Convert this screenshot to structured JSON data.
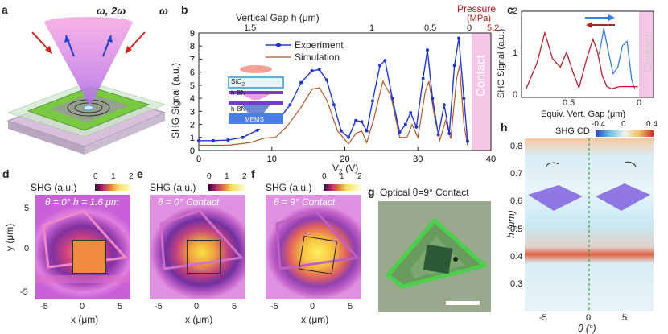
{
  "labels": {
    "a": "a",
    "b": "b",
    "c": "c",
    "d": "d",
    "e": "e",
    "f": "f",
    "g": "g",
    "h": "h"
  },
  "panel_a": {
    "beam_label_left": "ω, 2ω",
    "beam_label_right": "ω",
    "colors": {
      "beam": "#e070d0",
      "arrow_red": "#d02020",
      "arrow_blue": "#2040d0",
      "chip": "#7ac943"
    }
  },
  "panel_b": {
    "top_axis_title": "Vertical Gap h (μm)",
    "top_ticks": [
      "1.5",
      "1",
      "0.5",
      "0"
    ],
    "pressure_title": "Pressure",
    "pressure_unit": "(MPa)",
    "pressure_value": "5.2",
    "ylabel": "SHG Signal (a.u.)",
    "xlabel": "V",
    "xlabel_sub": "Z",
    "xlabel_unit": " (V)",
    "contact_label": "Contact",
    "legend": [
      "Experiment",
      "Simulation"
    ],
    "inset": {
      "sio2": "SiO",
      "sio2_sub": "2",
      "hbn_top": "h-BN",
      "hbn_bottom": "h-BN",
      "mems": "MEMS"
    },
    "colors": {
      "experiment": "#2338c8",
      "simulation": "#b5562a",
      "contact": "#f5c6e6",
      "pressure": "#b01818"
    }
  },
  "panel_c": {
    "ylabel": "SHG Signal (a.u.)",
    "xlabel": "Equiv. Vert. Gap (μm)",
    "contact_label": "Contact",
    "x_ticks": [
      "0.5",
      "0"
    ],
    "y_ticks": [
      "0",
      "1",
      "2"
    ]
  },
  "panel_d": {
    "title": "SHG (a.u.)",
    "cbar_ticks": [
      "0",
      "1",
      "2"
    ],
    "annotation": "θ = 0°   h = 1.6 μm",
    "xlabel": "x (μm)",
    "ylabel": "y (μm)",
    "x_ticks": [
      "-5",
      "0",
      "5"
    ],
    "y_ticks": [
      "5",
      "0",
      "-5"
    ]
  },
  "panel_e": {
    "title": "SHG (a.u.)",
    "cbar_ticks": [
      "0",
      "1",
      "2"
    ],
    "annotation": "θ = 0° Contact",
    "xlabel": "x (μm)",
    "x_ticks": [
      "-5",
      "0",
      "5"
    ]
  },
  "panel_f": {
    "title": "SHG (a.u.)",
    "cbar_ticks": [
      "0",
      "1",
      "2"
    ],
    "annotation": "θ = 9° Contact",
    "xlabel": "x (μm)",
    "x_ticks": [
      "-5",
      "0",
      "5"
    ]
  },
  "panel_g": {
    "title": "Optical  θ=9° Contact"
  },
  "panel_h": {
    "cbar_title": "SHG CD",
    "cbar_ticks": [
      "-0.4",
      "0",
      "0.4"
    ],
    "xlabel": "θ (°)",
    "ylabel": "h (μm)",
    "x_ticks": [
      "-5",
      "0",
      "5"
    ],
    "y_ticks": [
      "0.8",
      "0.7",
      "0.6",
      "0.5",
      "0.4",
      "0.3"
    ]
  },
  "chart_data": [
    {
      "type": "line",
      "title": "Vertical Gap h (μm)",
      "xlabel": "Vz (V)",
      "ylabel": "SHG Signal (a.u.)",
      "xlim": [
        0,
        40
      ],
      "ylim": [
        0,
        9
      ],
      "x_ticks": [
        0,
        10,
        20,
        30,
        40
      ],
      "y_ticks": [
        0,
        1,
        2,
        3,
        4,
        5,
        6,
        7,
        8,
        9
      ],
      "contact_region": [
        37,
        40
      ],
      "series": [
        {
          "name": "Experiment",
          "x": [
            0,
            2,
            4,
            6,
            8,
            9.5,
            11,
            12.5,
            14,
            15.5,
            16.5,
            17.5,
            18.5,
            19.5,
            20.5,
            21.5,
            22.3,
            23,
            23.8,
            24.8,
            25.5,
            26.5,
            27.5,
            28.3,
            29,
            29.8,
            30.7,
            31.3,
            32,
            32.8,
            33.6,
            34.3,
            35,
            35.6,
            36.3,
            36.8
          ],
          "y": [
            0.75,
            0.75,
            0.8,
            1.0,
            1.55,
            2.1,
            2.4,
            3.5,
            5.2,
            6.1,
            6.2,
            5.4,
            3.5,
            1.5,
            1.0,
            2.3,
            2.2,
            1.5,
            3.8,
            6.5,
            6.9,
            4.0,
            1.4,
            2.0,
            2.9,
            1.8,
            5.5,
            7.7,
            4.0,
            1.2,
            3.5,
            1.3,
            6.5,
            8.6,
            4.0,
            0.7
          ]
        },
        {
          "name": "Simulation",
          "x": [
            0,
            4,
            7,
            9,
            10.5,
            12,
            14,
            15.5,
            16.5,
            17.5,
            19,
            20.5,
            21.5,
            22.3,
            23,
            24,
            25.2,
            26.3,
            27.5,
            28.5,
            29.2,
            30,
            31,
            31.5,
            32.3,
            33,
            33.8,
            34.5,
            35.3,
            35.7,
            36.3,
            36.8
          ],
          "y": [
            0.4,
            0.4,
            0.6,
            0.95,
            1.0,
            1.8,
            3.3,
            4.7,
            4.8,
            3.9,
            1.5,
            0.5,
            1.3,
            1.5,
            0.6,
            2.5,
            5.3,
            4.2,
            1.0,
            1.0,
            2.0,
            1.0,
            4.5,
            5.3,
            2.5,
            0.8,
            2.3,
            0.9,
            5.5,
            6.5,
            2.0,
            0.4
          ]
        }
      ]
    },
    {
      "type": "line",
      "xlabel": "Equiv. Vert. Gap (μm)",
      "ylabel": "SHG Signal (a.u.)",
      "xlim": [
        0.75,
        -0.1
      ],
      "ylim": [
        0,
        2
      ],
      "contact_region": [
        0,
        -0.1
      ],
      "series": [
        {
          "name": "Forward (blue)",
          "x": [
            0.25,
            0.22,
            0.19,
            0.16,
            0.13,
            0.1,
            0.07,
            0.04,
            0.02
          ],
          "y": [
            1.0,
            1.6,
            1.05,
            0.55,
            0.7,
            1.2,
            1.3,
            0.4,
            0.2
          ]
        },
        {
          "name": "Backward (red)",
          "x": [
            0.72,
            0.65,
            0.6,
            0.55,
            0.5,
            0.46,
            0.42,
            0.38,
            0.33,
            0.29,
            0.26,
            0.23,
            0.2,
            0.17,
            0.12,
            0.05,
            0.0
          ],
          "y": [
            0.2,
            0.8,
            1.5,
            0.9,
            0.7,
            1.05,
            0.6,
            0.22,
            0.9,
            1.35,
            1.05,
            0.5,
            0.25,
            0.2,
            0.25,
            0.25,
            0.25
          ]
        }
      ]
    }
  ]
}
